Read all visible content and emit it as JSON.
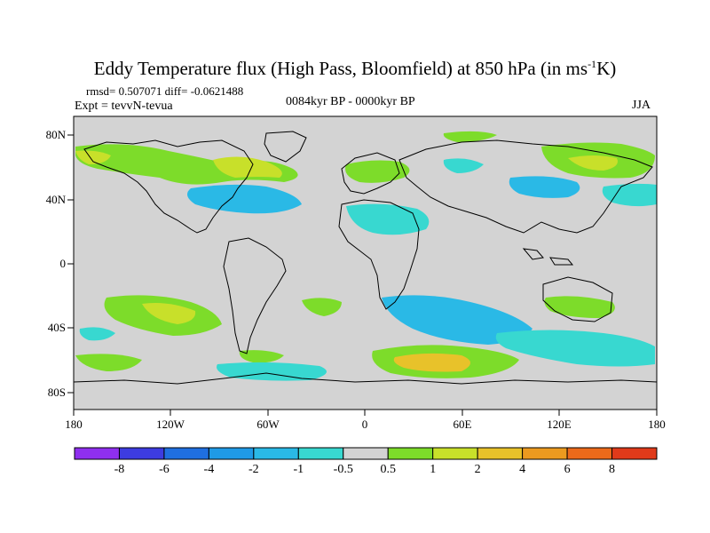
{
  "title": {
    "main": "Eddy Temperature flux (High Pass, Bloomfield) at 850 hPa (in ms",
    "sup": "-1",
    "unit_tail": "K)"
  },
  "stats": "rmsd= 0.507071 diff= -0.0621488",
  "experiment": "Expt = tevvN-tevua",
  "period": "0084kyr BP - 0000kyr BP",
  "season": "JJA",
  "lat_ticks": [
    "80N",
    "40N",
    "0",
    "40S",
    "80S"
  ],
  "lon_ticks": [
    "180",
    "120W",
    "60W",
    "0",
    "60E",
    "120E",
    "180"
  ],
  "colorbar": {
    "labels": [
      "-8",
      "-6",
      "-4",
      "-2",
      "-1",
      "-0.5",
      "0.5",
      "1",
      "2",
      "4",
      "6",
      "8"
    ],
    "colors": [
      "#8f2fef",
      "#3d3ce0",
      "#1f6fe0",
      "#1f9ae6",
      "#2ab9e6",
      "#38d8d0",
      "#d3d3d3",
      "#7ddc2a",
      "#c8e02a",
      "#e8c22a",
      "#ec9a1f",
      "#ec6a1a",
      "#e03a1a"
    ]
  },
  "colors": {
    "land_bg": "#d3d3d3",
    "frame": "#000000",
    "coast": "#000000"
  }
}
